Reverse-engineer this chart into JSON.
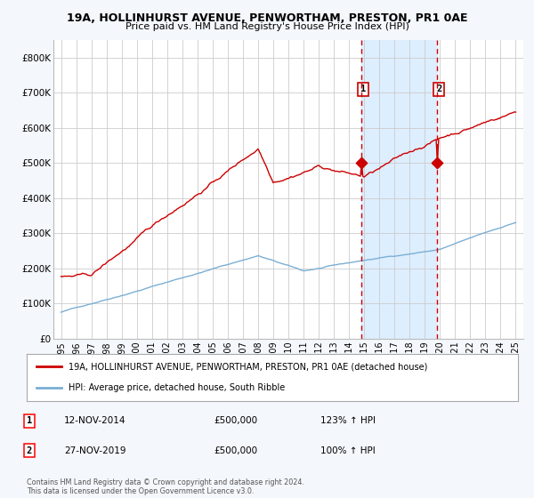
{
  "title_line1": "19A, HOLLINHURST AVENUE, PENWORTHAM, PRESTON, PR1 0AE",
  "title_line2": "Price paid vs. HM Land Registry's House Price Index (HPI)",
  "ylim": [
    0,
    850000
  ],
  "yticks": [
    0,
    100000,
    200000,
    300000,
    400000,
    500000,
    600000,
    700000,
    800000
  ],
  "ytick_labels": [
    "£0",
    "£100K",
    "£200K",
    "£300K",
    "£400K",
    "£500K",
    "£600K",
    "£700K",
    "£800K"
  ],
  "hpi_color": "#7bafd4",
  "house_color": "#cc0000",
  "shade_color": "#ddeeff",
  "dashed_color": "#cc0000",
  "event1_label": "1",
  "event2_label": "2",
  "event1_date": "12-NOV-2014",
  "event1_price": "£500,000",
  "event1_hpi": "123% ↑ HPI",
  "event2_date": "27-NOV-2019",
  "event2_price": "£500,000",
  "event2_hpi": "100% ↑ HPI",
  "legend_house": "19A, HOLLINHURST AVENUE, PENWORTHAM, PRESTON, PR1 0AE (detached house)",
  "legend_hpi": "HPI: Average price, detached house, South Ribble",
  "footer": "Contains HM Land Registry data © Crown copyright and database right 2024.\nThis data is licensed under the Open Government Licence v3.0.",
  "bg_color": "#f4f7fb",
  "plot_bg": "#ffffff"
}
